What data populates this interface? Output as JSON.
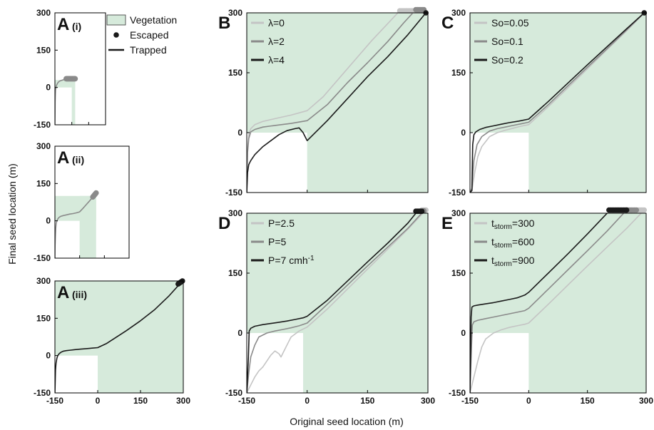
{
  "colors": {
    "vegetation": "#d6eadb",
    "light": "#c4c4c4",
    "mid": "#8a8a8a",
    "dark": "#1a1a1a",
    "frame": "#000000"
  },
  "axis_titles": {
    "x": "Original seed location (m)",
    "y": "Final seed location (m)"
  },
  "chart_data": [
    {
      "id": "A(i)",
      "type": "line",
      "panel_letter": "A",
      "panel_sub": "(i)",
      "xlim": [
        -150,
        300
      ],
      "ylim": [
        -150,
        300
      ],
      "ticks": [
        -150,
        0,
        150,
        300
      ],
      "show_x_ticks": false,
      "vegetation": [
        [
          -150,
          0,
          30,
          30
        ],
        [
          0,
          -150,
          30,
          30
        ]
      ],
      "legend": {
        "entries": [
          {
            "symbol": "patch",
            "label": "Vegetation"
          },
          {
            "symbol": "dot",
            "label": "Escaped"
          },
          {
            "symbol": "line",
            "label": "Trapped"
          }
        ]
      },
      "series": [
        {
          "color": "mid",
          "escaped_x": [
            -50,
            30
          ],
          "escaped_y": 35,
          "x": [
            -150,
            -149,
            -148,
            -146,
            -144,
            -140,
            -135,
            -128,
            -120,
            -110,
            -95,
            -80,
            -65,
            -50
          ],
          "y": [
            -150,
            -100,
            -60,
            -30,
            -10,
            2,
            10,
            16,
            21,
            25,
            28,
            30,
            32,
            35
          ]
        }
      ]
    },
    {
      "id": "A(ii)",
      "type": "line",
      "panel_letter": "A",
      "panel_sub": "(ii)",
      "xlim": [
        -150,
        300
      ],
      "ylim": [
        -150,
        300
      ],
      "ticks": [
        -150,
        0,
        150,
        300
      ],
      "show_x_ticks": false,
      "vegetation": [
        [
          -150,
          0,
          100,
          100
        ],
        [
          0,
          -150,
          100,
          100
        ]
      ],
      "series": [
        {
          "color": "mid",
          "escaped_x": [
            80,
            100
          ],
          "escaped_y_end": 112,
          "x": [
            -150,
            -149,
            -147,
            -145,
            -142,
            -138,
            -132,
            -125,
            -115,
            -100,
            -80,
            -60,
            -40,
            -20,
            0,
            20,
            40,
            60,
            80,
            100
          ],
          "y": [
            -150,
            -100,
            -60,
            -30,
            -10,
            0,
            8,
            14,
            18,
            21,
            24,
            27,
            29,
            32,
            36,
            50,
            65,
            80,
            96,
            112
          ]
        }
      ]
    },
    {
      "id": "A(iii)",
      "type": "line",
      "panel_letter": "A",
      "panel_sub": "(iii)",
      "xlim": [
        -150,
        300
      ],
      "ylim": [
        -150,
        300
      ],
      "ticks": [
        -150,
        0,
        150,
        300
      ],
      "show_x_ticks": true,
      "vegetation": [
        [
          -150,
          0,
          300,
          300
        ],
        [
          0,
          -150,
          300,
          300
        ]
      ],
      "series": [
        {
          "color": "dark",
          "escaped_x": [
            282,
            297
          ],
          "escaped_y_end": 300,
          "x": [
            -150,
            -148,
            -146,
            -143,
            -140,
            -135,
            -128,
            -120,
            -110,
            -95,
            -80,
            -60,
            -40,
            -20,
            0,
            30,
            60,
            100,
            150,
            200,
            250,
            297
          ],
          "y": [
            -150,
            -60,
            -30,
            -10,
            0,
            8,
            14,
            18,
            20,
            22,
            24,
            26,
            28,
            30,
            32,
            48,
            70,
            100,
            140,
            185,
            240,
            300
          ]
        }
      ]
    },
    {
      "id": "B",
      "type": "line",
      "panel_letter": "B",
      "xlim": [
        -150,
        300
      ],
      "ylim": [
        -150,
        300
      ],
      "ticks": [
        -150,
        0,
        150,
        300
      ],
      "show_x_ticks": false,
      "vegetation": [
        [
          -150,
          0,
          300,
          300
        ],
        [
          0,
          -150,
          300,
          300
        ]
      ],
      "legend": {
        "entries": [
          {
            "color": "light",
            "label": "λ=0"
          },
          {
            "color": "mid",
            "label": "λ=2"
          },
          {
            "color": "dark",
            "label": "λ=4"
          }
        ]
      },
      "series": [
        {
          "name": "λ=0",
          "color": "light",
          "escaped_x": [
            230,
            290
          ],
          "escaped_y": 305,
          "x": [
            -150,
            -148,
            -145,
            -140,
            -130,
            -110,
            -80,
            -40,
            0,
            40,
            100,
            160,
            230
          ],
          "y": [
            -150,
            -40,
            -5,
            10,
            20,
            28,
            35,
            44,
            55,
            90,
            160,
            230,
            305
          ]
        },
        {
          "name": "λ=2",
          "color": "mid",
          "escaped_x": [
            270,
            290
          ],
          "escaped_y": 308,
          "x": [
            -150,
            -148,
            -145,
            -140,
            -130,
            -110,
            -80,
            -40,
            0,
            50,
            100,
            150,
            200,
            240,
            270
          ],
          "y": [
            -150,
            -50,
            -15,
            2,
            8,
            14,
            18,
            23,
            30,
            70,
            125,
            175,
            228,
            275,
            308
          ]
        },
        {
          "name": "λ=4",
          "color": "dark",
          "escaped_x": [
            295,
            295
          ],
          "escaped_y": 300,
          "x": [
            -150,
            -148,
            -145,
            -140,
            -130,
            -110,
            -90,
            -70,
            -50,
            -30,
            -20,
            -10,
            -5,
            0,
            50,
            100,
            150,
            200,
            250,
            295
          ],
          "y": [
            -150,
            -100,
            -80,
            -70,
            -55,
            -35,
            -20,
            -5,
            5,
            10,
            12,
            0,
            -10,
            -20,
            30,
            85,
            140,
            190,
            245,
            300
          ]
        }
      ]
    },
    {
      "id": "C",
      "type": "line",
      "panel_letter": "C",
      "xlim": [
        -150,
        300
      ],
      "ylim": [
        -150,
        300
      ],
      "ticks": [
        -150,
        0,
        150,
        300
      ],
      "show_x_ticks": false,
      "vegetation": [
        [
          -150,
          0,
          300,
          300
        ],
        [
          0,
          -150,
          300,
          300
        ]
      ],
      "legend": {
        "entries": [
          {
            "color": "light",
            "label": "So=0.05"
          },
          {
            "color": "mid",
            "label": "So=0.1"
          },
          {
            "color": "dark",
            "label": "So=0.2"
          }
        ]
      },
      "series": [
        {
          "name": "So=0.05",
          "color": "light",
          "escaped_x": [
            295,
            295
          ],
          "escaped_y": 300,
          "x": [
            -150,
            -145,
            -138,
            -130,
            -120,
            -100,
            -80,
            -60,
            -40,
            -20,
            0,
            50,
            100,
            150,
            200,
            250,
            295
          ],
          "y": [
            -150,
            -145,
            -100,
            -60,
            -35,
            -10,
            0,
            6,
            11,
            16,
            20,
            65,
            112,
            160,
            208,
            255,
            300
          ]
        },
        {
          "name": "So=0.1",
          "color": "mid",
          "escaped_x": [
            295,
            295
          ],
          "escaped_y": 300,
          "x": [
            -150,
            -145,
            -140,
            -132,
            -120,
            -100,
            -80,
            -60,
            -40,
            -20,
            0,
            50,
            100,
            150,
            200,
            250,
            295
          ],
          "y": [
            -150,
            -140,
            -70,
            -30,
            -10,
            4,
            10,
            14,
            18,
            22,
            26,
            70,
            117,
            164,
            210,
            257,
            300
          ]
        },
        {
          "name": "So=0.2",
          "color": "dark",
          "escaped_x": [
            295,
            295
          ],
          "escaped_y": 300,
          "x": [
            -150,
            -145,
            -143,
            -140,
            -135,
            -125,
            -110,
            -90,
            -70,
            -50,
            -25,
            0,
            50,
            100,
            150,
            200,
            250,
            295
          ],
          "y": [
            -150,
            -145,
            -30,
            -5,
            2,
            8,
            13,
            17,
            21,
            25,
            29,
            34,
            78,
            124,
            170,
            215,
            260,
            300
          ]
        }
      ]
    },
    {
      "id": "D",
      "type": "line",
      "panel_letter": "D",
      "xlim": [
        -150,
        300
      ],
      "ylim": [
        -150,
        300
      ],
      "ticks": [
        -150,
        0,
        150,
        300
      ],
      "show_x_ticks": true,
      "vegetation": [
        [
          -150,
          0,
          300,
          300
        ],
        [
          -10,
          -150,
          300,
          300
        ]
      ],
      "legend": {
        "entries": [
          {
            "color": "light",
            "label": "P=2.5"
          },
          {
            "color": "mid",
            "label": "P=5"
          },
          {
            "color": "dark",
            "label": "P=7 cmh",
            "sup": "-1"
          }
        ]
      },
      "series": [
        {
          "name": "P=2.5",
          "color": "light",
          "escaped_x": [
            285,
            295
          ],
          "escaped_y": 308,
          "x": [
            -150,
            -140,
            -130,
            -120,
            -110,
            -100,
            -90,
            -80,
            -70,
            -65,
            -60,
            -50,
            -40,
            -20,
            0,
            50,
            100,
            150,
            200,
            250,
            295
          ],
          "y": [
            -150,
            -130,
            -110,
            -95,
            -85,
            -70,
            -55,
            -45,
            -52,
            -60,
            -50,
            -30,
            -10,
            5,
            15,
            60,
            110,
            160,
            210,
            260,
            308
          ]
        },
        {
          "name": "P=5",
          "color": "mid",
          "escaped_x": [
            290,
            290
          ],
          "escaped_y": 306,
          "x": [
            -150,
            -145,
            -140,
            -130,
            -120,
            -100,
            -80,
            -60,
            -40,
            -20,
            0,
            50,
            100,
            150,
            200,
            250,
            290
          ],
          "y": [
            -150,
            -100,
            -60,
            -30,
            -10,
            0,
            5,
            9,
            13,
            18,
            25,
            72,
            120,
            168,
            215,
            262,
            306
          ]
        },
        {
          "name": "P=7 cmh-1",
          "color": "dark",
          "escaped_x": [
            270,
            285
          ],
          "escaped_y": 305,
          "x": [
            -150,
            -146,
            -144,
            -140,
            -130,
            -110,
            -90,
            -70,
            -50,
            -30,
            -10,
            0,
            50,
            100,
            150,
            200,
            250,
            270
          ],
          "y": [
            -150,
            -60,
            5,
            12,
            17,
            21,
            24,
            27,
            30,
            34,
            38,
            42,
            82,
            130,
            178,
            225,
            275,
            300
          ]
        }
      ]
    },
    {
      "id": "E",
      "type": "line",
      "panel_letter": "E",
      "xlim": [
        -150,
        300
      ],
      "ylim": [
        -150,
        300
      ],
      "ticks": [
        -150,
        0,
        150,
        300
      ],
      "show_x_ticks": true,
      "vegetation": [
        [
          -150,
          0,
          300,
          300
        ],
        [
          0,
          -150,
          300,
          300
        ]
      ],
      "legend": {
        "entries": [
          {
            "color": "light",
            "label": "t",
            "sub": "storm",
            "tail": "=300"
          },
          {
            "color": "mid",
            "label": "t",
            "sub": "storm",
            "tail": "=600"
          },
          {
            "color": "dark",
            "label": "t",
            "sub": "storm",
            "tail": "=900"
          }
        ]
      },
      "series": [
        {
          "name": "tstorm=300",
          "color": "light",
          "escaped_x": [
            280,
            295
          ],
          "escaped_y": 308,
          "x": [
            -150,
            -140,
            -130,
            -120,
            -110,
            -90,
            -70,
            -50,
            -30,
            -10,
            0,
            50,
            100,
            150,
            200,
            250,
            295
          ],
          "y": [
            -150,
            -110,
            -70,
            -35,
            -15,
            0,
            8,
            14,
            18,
            22,
            25,
            72,
            120,
            168,
            215,
            262,
            308
          ]
        },
        {
          "name": "tstorm=600",
          "color": "mid",
          "escaped_x": [
            250,
            275
          ],
          "escaped_y": 308,
          "x": [
            -150,
            -146,
            -144,
            -140,
            -130,
            -110,
            -90,
            -70,
            -50,
            -30,
            -10,
            0,
            50,
            100,
            150,
            200,
            250
          ],
          "y": [
            -150,
            -30,
            20,
            28,
            32,
            36,
            40,
            44,
            48,
            52,
            56,
            62,
            110,
            158,
            206,
            255,
            308
          ]
        },
        {
          "name": "tstorm=900",
          "color": "dark",
          "escaped_x": [
            205,
            250
          ],
          "escaped_y": 308,
          "x": [
            -150,
            -147,
            -145,
            -140,
            -130,
            -110,
            -90,
            -70,
            -50,
            -30,
            -10,
            0,
            50,
            100,
            150,
            205
          ],
          "y": [
            -150,
            40,
            65,
            68,
            70,
            73,
            76,
            80,
            84,
            88,
            95,
            102,
            150,
            198,
            248,
            305
          ]
        }
      ]
    }
  ]
}
